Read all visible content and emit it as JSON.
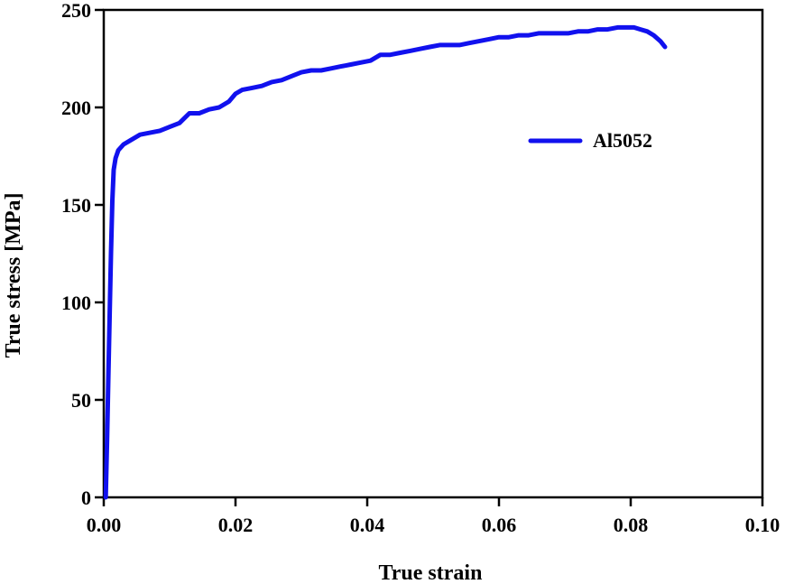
{
  "chart_data": {
    "type": "line",
    "xlabel": "True strain",
    "ylabel": "True stress [MPa]",
    "xlim": [
      0.0,
      0.1
    ],
    "ylim": [
      0,
      250
    ],
    "xticks": [
      "0.00",
      "0.02",
      "0.04",
      "0.06",
      "0.08",
      "0.10"
    ],
    "xtick_values": [
      0.0,
      0.02,
      0.04,
      0.06,
      0.08,
      0.1
    ],
    "yticks": [
      "0",
      "50",
      "100",
      "150",
      "200",
      "250"
    ],
    "ytick_values": [
      0,
      50,
      100,
      150,
      200,
      250
    ],
    "grid": false,
    "legend_position": "right, upper-middle",
    "series": [
      {
        "name": "Al5052",
        "color": "#1111ee",
        "x": [
          0.0003,
          0.0005,
          0.0007,
          0.0009,
          0.0011,
          0.0013,
          0.0015,
          0.0018,
          0.0022,
          0.003,
          0.004,
          0.0055,
          0.007,
          0.0085,
          0.01,
          0.0115,
          0.013,
          0.0145,
          0.016,
          0.0175,
          0.019,
          0.02,
          0.021,
          0.0225,
          0.024,
          0.0255,
          0.027,
          0.0285,
          0.03,
          0.0315,
          0.033,
          0.0345,
          0.036,
          0.0375,
          0.039,
          0.0405,
          0.042,
          0.0435,
          0.045,
          0.0465,
          0.048,
          0.0495,
          0.051,
          0.0525,
          0.054,
          0.0555,
          0.057,
          0.0585,
          0.06,
          0.0615,
          0.063,
          0.0645,
          0.066,
          0.0675,
          0.069,
          0.0705,
          0.072,
          0.0735,
          0.075,
          0.0765,
          0.078,
          0.0795,
          0.0805,
          0.0815,
          0.0825,
          0.0835,
          0.0845,
          0.0852
        ],
        "y": [
          0,
          30,
          62,
          95,
          125,
          152,
          168,
          174,
          178,
          181,
          183,
          186,
          187,
          188,
          190,
          192,
          197,
          197,
          199,
          200,
          203,
          207,
          209,
          210,
          211,
          213,
          214,
          216,
          218,
          219,
          219,
          220,
          221,
          222,
          223,
          224,
          227,
          227,
          228,
          229,
          230,
          231,
          232,
          232,
          232,
          233,
          234,
          235,
          236,
          236,
          237,
          237,
          238,
          238,
          238,
          238,
          239,
          239,
          240,
          240,
          241,
          241,
          241,
          240,
          239,
          237,
          234,
          231
        ]
      }
    ]
  }
}
